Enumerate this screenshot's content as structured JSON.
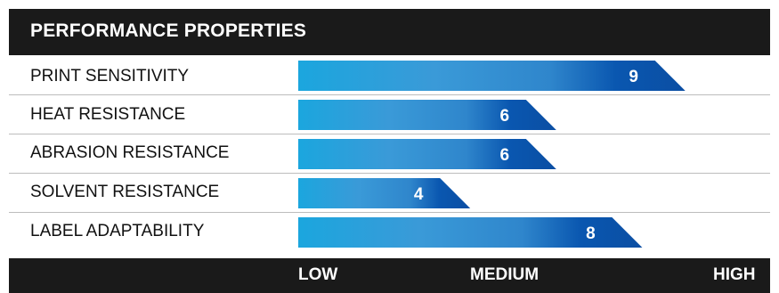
{
  "chart_data": {
    "type": "bar",
    "orientation": "horizontal",
    "title": "PERFORMANCE PROPERTIES",
    "categories": [
      "PRINT SENSITIVITY",
      "HEAT RESISTANCE",
      "ABRASION RESISTANCE",
      "SOLVENT RESISTANCE",
      "LABEL ADAPTABILITY"
    ],
    "values": [
      9,
      6,
      6,
      4,
      8
    ],
    "xlim": [
      0,
      10
    ],
    "scale_labels": [
      "LOW",
      "MEDIUM",
      "HIGH"
    ],
    "data_labels": true,
    "grid": false,
    "legend": "none"
  },
  "colors": {
    "header_bg": "#1a1a1a",
    "bar_light": "#1ba6de",
    "bar_dark": "#0a4fa6",
    "divider": "#bdbdbd"
  }
}
